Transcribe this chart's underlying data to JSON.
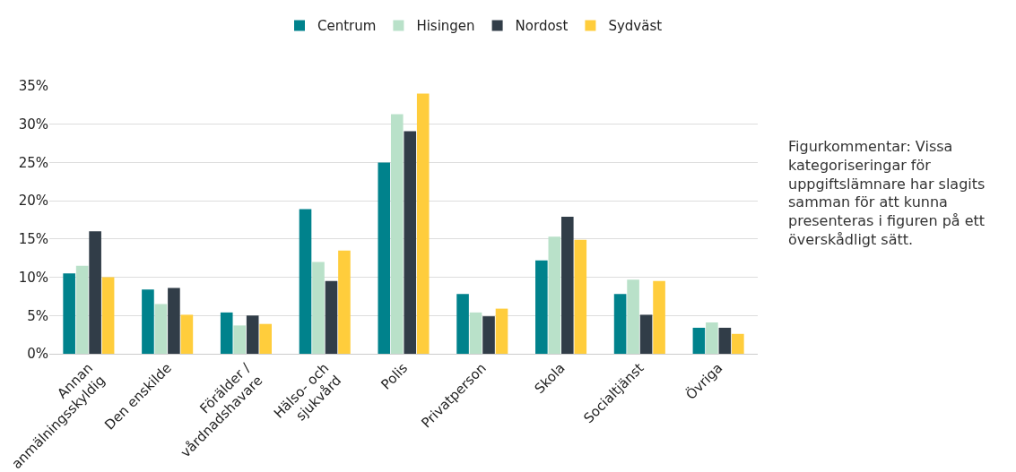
{
  "chart_data": {
    "type": "bar",
    "categories": [
      "Annan\nanmälningsskyldig",
      "Den enskilde",
      "Förälder /\nvårdnadshavare",
      "Hälso- och\nsjukvård",
      "Polis",
      "Privatperson",
      "Skola",
      "Socialtjänst",
      "Övriga"
    ],
    "series": [
      {
        "name": "Centrum",
        "color": "#00828c",
        "values": [
          10.5,
          8.4,
          5.4,
          18.9,
          25.0,
          7.8,
          12.2,
          7.8,
          3.4
        ]
      },
      {
        "name": "Hisingen",
        "color": "#b9e1c9",
        "values": [
          11.5,
          6.5,
          3.7,
          12.0,
          31.3,
          5.4,
          15.3,
          9.7,
          4.1
        ]
      },
      {
        "name": "Nordost",
        "color": "#313d48",
        "values": [
          16.0,
          8.6,
          5.0,
          9.5,
          29.1,
          4.9,
          17.9,
          5.1,
          3.4
        ]
      },
      {
        "name": "Sydväst",
        "color": "#ffcd3c",
        "values": [
          10.0,
          5.1,
          3.9,
          13.5,
          34.0,
          5.9,
          14.9,
          9.5,
          2.6
        ]
      }
    ],
    "ylim": [
      0,
      35
    ],
    "yticks": [
      {
        "value": 0,
        "label": "0%"
      },
      {
        "value": 5,
        "label": "5%"
      },
      {
        "value": 10,
        "label": "10%"
      },
      {
        "value": 15,
        "label": "15%"
      },
      {
        "value": 20,
        "label": "20%"
      },
      {
        "value": 25,
        "label": "25%"
      },
      {
        "value": 30,
        "label": "30%"
      },
      {
        "value": 35,
        "label": "35%"
      }
    ],
    "grid": "y",
    "legend": "top",
    "annotations": [
      "Figurkommentar: Vissa\nkategoriseringar för\nuppgiftslämnare har slagits\nsamman för att kunna\npresenteras i figuren på ett\növerskådligt sätt."
    ]
  }
}
